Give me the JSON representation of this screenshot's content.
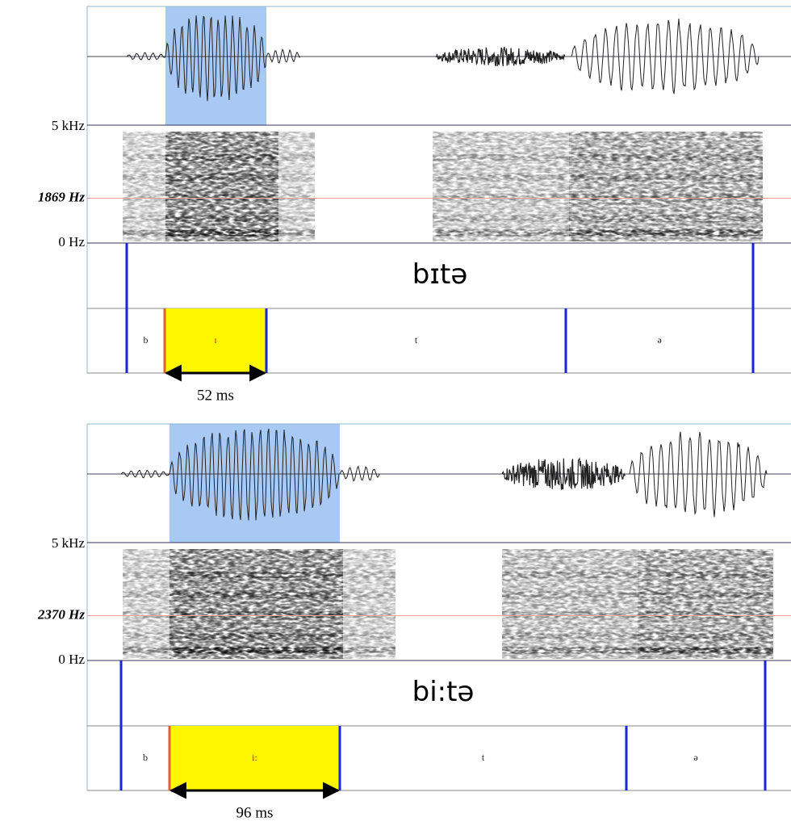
{
  "panels": [
    {
      "frequency_labels": {
        "top": "5 kHz",
        "marker": "1869 Hz",
        "bottom": "0 Hz"
      },
      "word": "bɪtə",
      "segments": [
        "b",
        "ɪ",
        "t",
        "ə"
      ],
      "duration": "52 ms"
    },
    {
      "frequency_labels": {
        "top": "5 kHz",
        "marker": "2370  Hz",
        "bottom": "0 Hz"
      },
      "word": "bi:tə",
      "segments": [
        "b",
        "i:",
        "t",
        "ə"
      ],
      "duration": "96 ms"
    }
  ]
}
